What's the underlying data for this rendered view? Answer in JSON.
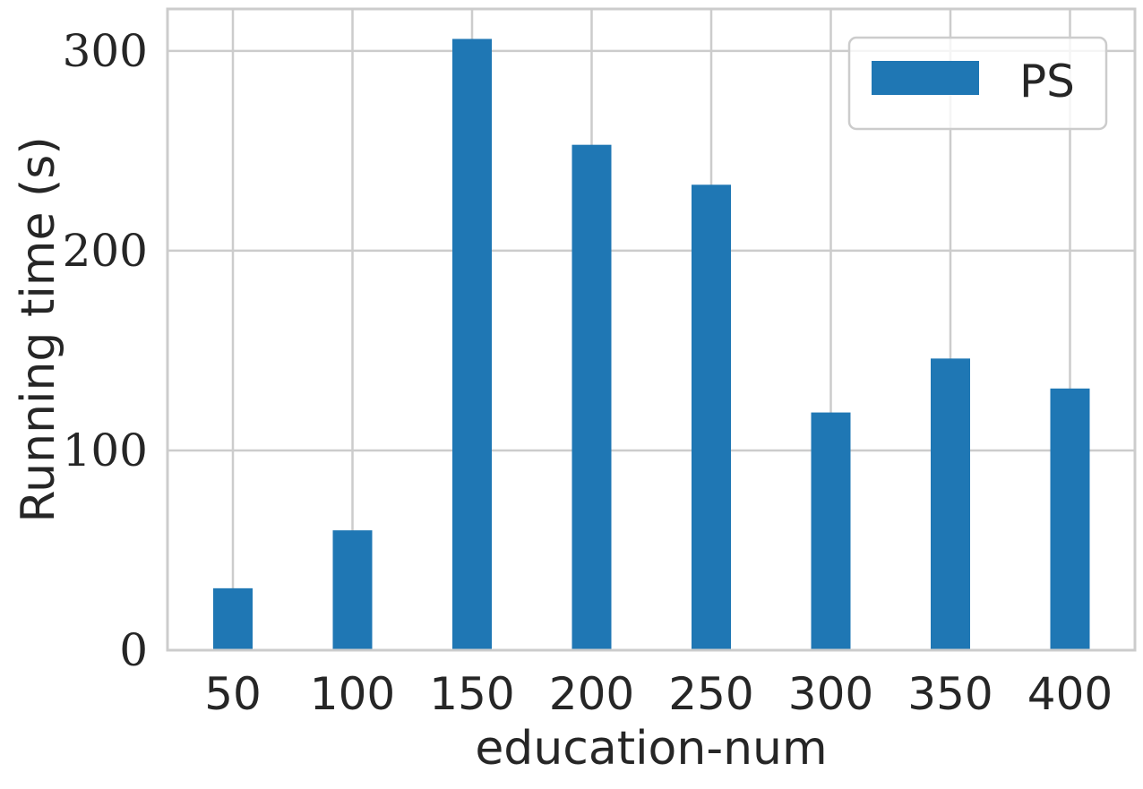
{
  "chart_data": {
    "type": "bar",
    "title": "",
    "xlabel": "education-num",
    "ylabel": "Running time (s)",
    "categories": [
      "50",
      "100",
      "150",
      "200",
      "250",
      "300",
      "350",
      "400"
    ],
    "series": [
      {
        "name": "PS",
        "values": [
          31,
          60,
          306,
          253,
          233,
          119,
          146,
          131
        ],
        "color": "#1f77b4"
      }
    ],
    "ylim": [
      0,
      321
    ],
    "yticks": [
      0,
      100,
      200,
      300
    ],
    "grid": true,
    "legend_position": "top-right"
  },
  "colors": {
    "bar": "#1f77b4",
    "grid": "#cccccc",
    "axis_frame": "#cccccc",
    "text": "#262626",
    "background": "#ffffff"
  }
}
